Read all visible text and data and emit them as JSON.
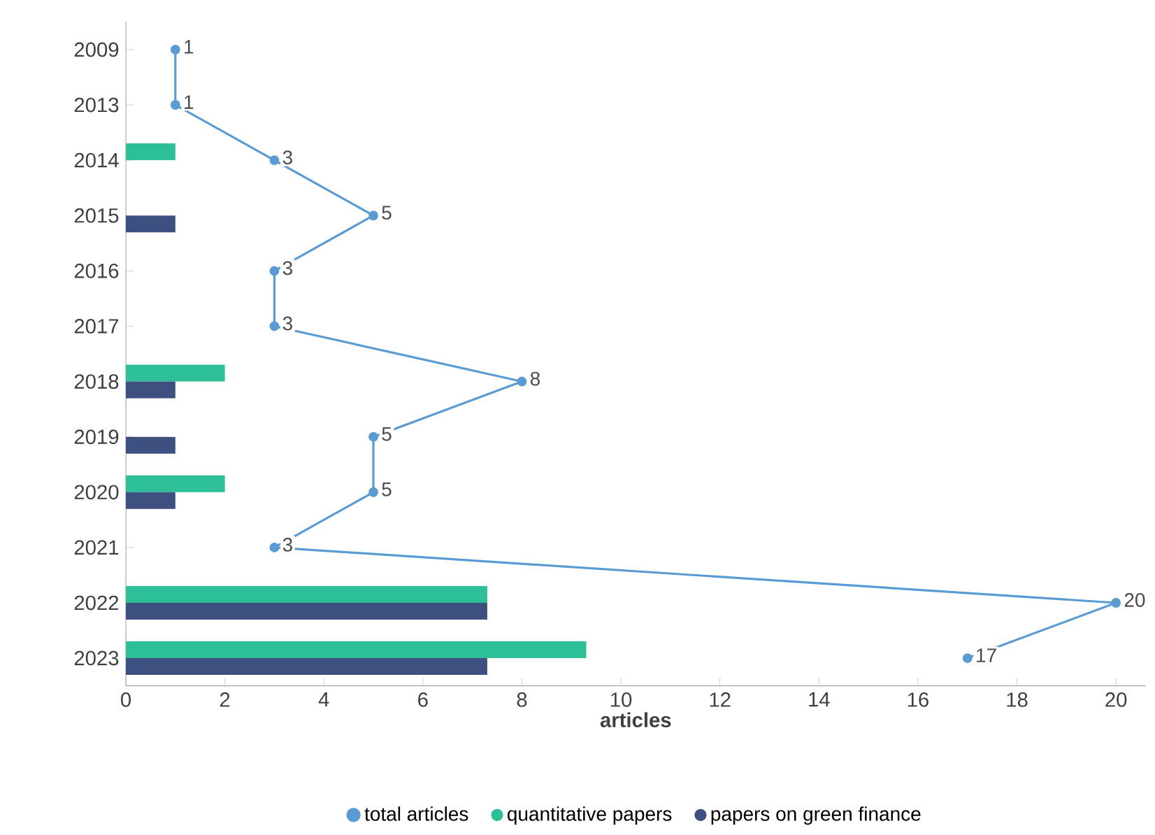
{
  "chart_data": {
    "type": "bar",
    "orientation": "horizontal",
    "xlabel": "articles",
    "categories": [
      "2009",
      "2013",
      "2014",
      "2015",
      "2016",
      "2017",
      "2018",
      "2019",
      "2020",
      "2021",
      "2022",
      "2023"
    ],
    "series": [
      {
        "name": "total articles",
        "type": "line",
        "color": "#5a9bd3",
        "marker": "circle",
        "values": [
          1,
          1,
          3,
          5,
          3,
          3,
          8,
          5,
          5,
          3,
          20,
          17
        ],
        "value_labels": [
          "1",
          "1",
          "3",
          "5",
          "3",
          "3",
          "8",
          "5",
          "5",
          "3",
          "20",
          "17"
        ]
      },
      {
        "name": "quantitative papers",
        "color": "#2dbf97",
        "values": [
          null,
          null,
          1,
          null,
          null,
          null,
          2,
          null,
          2,
          null,
          7.3,
          9.3
        ]
      },
      {
        "name": "papers on green finance",
        "color": "#3e5080",
        "values": [
          null,
          null,
          null,
          1,
          null,
          null,
          1,
          1,
          1,
          null,
          7.3,
          7.3
        ]
      }
    ],
    "xlim": [
      0,
      20.6
    ],
    "xticks": [
      0,
      2,
      4,
      6,
      8,
      10,
      12,
      14,
      16,
      18,
      20
    ],
    "legend": "bottom"
  }
}
